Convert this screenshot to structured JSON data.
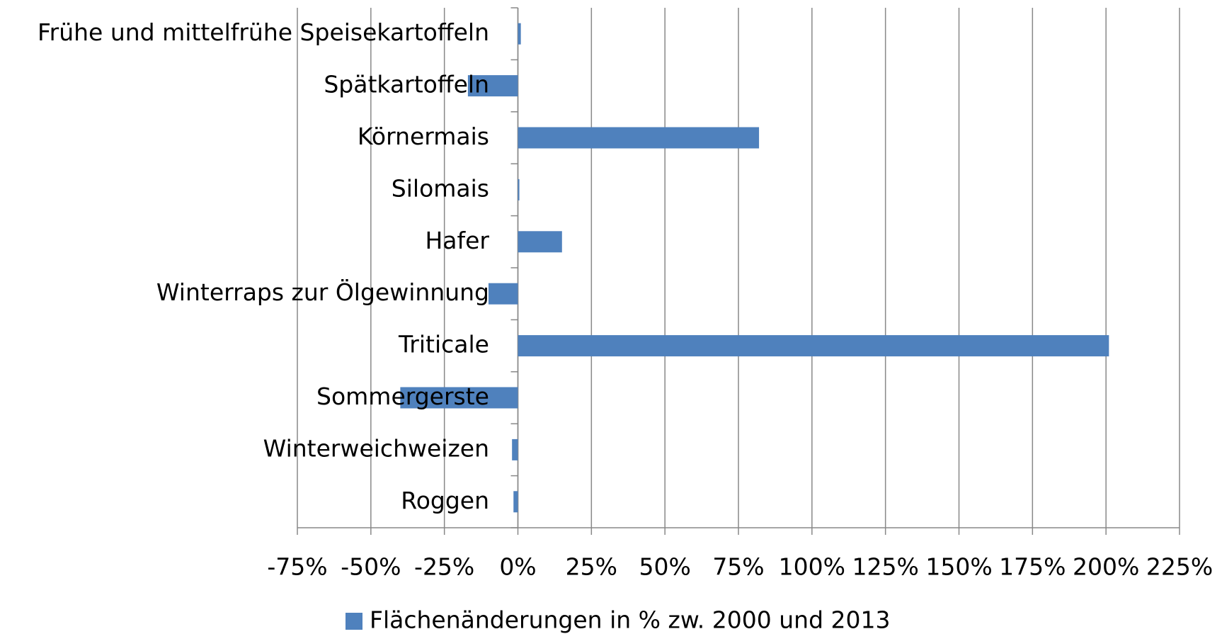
{
  "chart_data": {
    "type": "bar",
    "orientation": "horizontal",
    "categories": [
      "Frühe und mittelfrühe Speisekartoffeln",
      "Spätkartoffeln",
      "Körnermais",
      "Silomais",
      "Hafer",
      "Winterraps zur Ölgewinnung",
      "Triticale",
      "Sommergerste",
      "Winterweichweizen",
      "Roggen"
    ],
    "series": [
      {
        "name": "Flächenänderungen in % zw. 2000 und 2013",
        "color": "#4f81bd",
        "values": [
          1,
          -17,
          82,
          0.5,
          15,
          -10,
          201,
          -40,
          -2,
          -1.5
        ]
      }
    ],
    "xlim": [
      -75,
      225
    ],
    "xticks": [
      {
        "value": -75,
        "label": "-75%"
      },
      {
        "value": -50,
        "label": "-50%"
      },
      {
        "value": -25,
        "label": "-25%"
      },
      {
        "value": 0,
        "label": "0%"
      },
      {
        "value": 25,
        "label": "25%"
      },
      {
        "value": 50,
        "label": "50%"
      },
      {
        "value": 75,
        "label": "75%"
      },
      {
        "value": 100,
        "label": "100%"
      },
      {
        "value": 125,
        "label": "125%"
      },
      {
        "value": 150,
        "label": "150%"
      },
      {
        "value": 175,
        "label": "175%"
      },
      {
        "value": 200,
        "label": "200%"
      },
      {
        "value": 225,
        "label": "225%"
      }
    ],
    "grid": true,
    "legend": "bottom"
  }
}
